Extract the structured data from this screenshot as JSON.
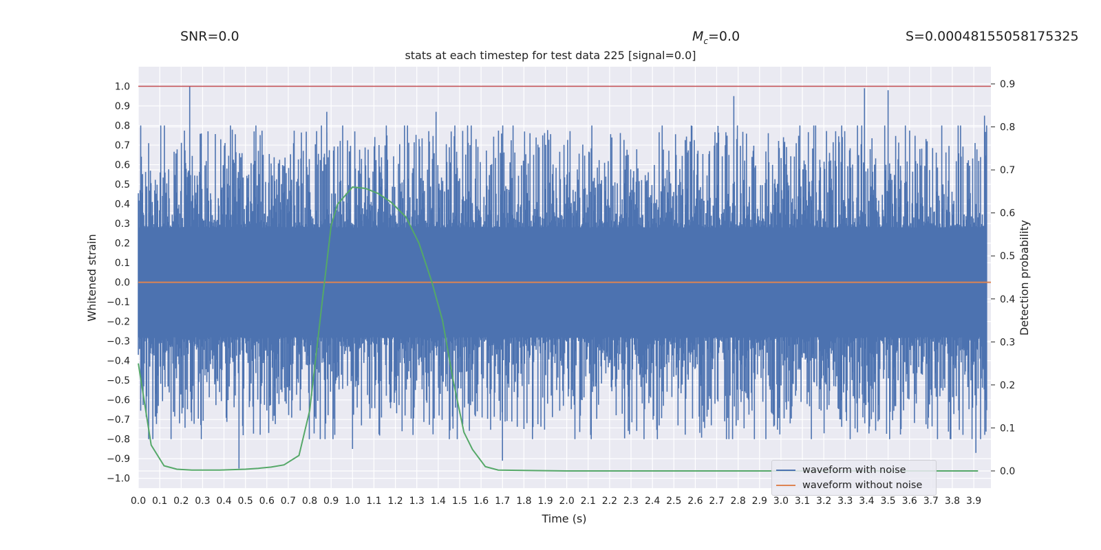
{
  "header": {
    "snr": "SNR=0.0",
    "mc_value": "=0.0",
    "s_value": "S=0.00048155058175325"
  },
  "chart_data": {
    "type": "line",
    "title": "stats at each timestep for test data 225 [signal=0.0]",
    "xlabel": "Time (s)",
    "ylabel": "Whitened strain",
    "ylabel_right": "Detection probability",
    "xlim": [
      0.0,
      3.98
    ],
    "ylim": [
      -1.05,
      1.1
    ],
    "ylim_right": [
      -0.04,
      0.94
    ],
    "x_ticks": [
      "0.0",
      "0.1",
      "0.2",
      "0.3",
      "0.4",
      "0.5",
      "0.6",
      "0.7",
      "0.8",
      "0.9",
      "1.0",
      "1.1",
      "1.2",
      "1.3",
      "1.4",
      "1.5",
      "1.6",
      "1.7",
      "1.8",
      "1.9",
      "2.0",
      "2.1",
      "2.2",
      "2.3",
      "2.4",
      "2.5",
      "2.6",
      "2.7",
      "2.8",
      "2.9",
      "3.0",
      "3.1",
      "3.2",
      "3.3",
      "3.4",
      "3.5",
      "3.6",
      "3.7",
      "3.8",
      "3.9"
    ],
    "y_ticks": [
      "1.0",
      "0.9",
      "0.8",
      "0.7",
      "0.6",
      "0.5",
      "0.4",
      "0.3",
      "0.2",
      "0.1",
      "0.0",
      "-0.1",
      "-0.2",
      "-0.3",
      "-0.4",
      "-0.5",
      "-0.6",
      "-0.7",
      "-0.8",
      "-0.9",
      "-1.0"
    ],
    "y_ticks_right": [
      "0.9",
      "0.8",
      "0.7",
      "0.6",
      "0.5",
      "0.4",
      "0.3",
      "0.2",
      "0.1",
      "0.0"
    ],
    "grid": true,
    "legend_position": "bottom-right",
    "series": [
      {
        "name": "waveform with noise",
        "color": "#4c72b0",
        "axis": "left",
        "peaks": [
          {
            "x": 0.24,
            "y": 1.0
          },
          {
            "x": 0.47,
            "y": -0.95
          },
          {
            "x": 0.88,
            "y": 0.87
          },
          {
            "x": 1.0,
            "y": -0.85
          },
          {
            "x": 1.39,
            "y": 0.87
          },
          {
            "x": 1.7,
            "y": -0.91
          },
          {
            "x": 2.78,
            "y": 0.95
          },
          {
            "x": 3.39,
            "y": 0.99
          },
          {
            "x": 3.5,
            "y": 0.98
          },
          {
            "x": 3.91,
            "y": -0.87
          },
          {
            "x": 3.95,
            "y": 0.85
          }
        ]
      },
      {
        "name": "waveform without noise",
        "color": "#dd8452",
        "axis": "left",
        "x": [
          0.0,
          3.98
        ],
        "y": [
          0.0,
          0.0
        ]
      },
      {
        "name": "",
        "color": "#55a868",
        "axis": "right",
        "x": [
          0.0,
          0.06,
          0.12,
          0.18,
          0.25,
          0.31,
          0.38,
          0.44,
          0.5,
          0.56,
          0.62,
          0.68,
          0.75,
          0.8,
          0.86,
          0.9,
          0.93,
          1.0,
          1.06,
          1.12,
          1.18,
          1.25,
          1.31,
          1.37,
          1.42,
          1.47,
          1.52,
          1.56,
          1.62,
          1.68,
          2.0,
          3.0,
          3.92
        ],
        "y": [
          0.25,
          0.06,
          0.012,
          0.004,
          0.002,
          0.002,
          0.002,
          0.003,
          0.004,
          0.006,
          0.009,
          0.014,
          0.036,
          0.14,
          0.4,
          0.57,
          0.62,
          0.66,
          0.657,
          0.645,
          0.625,
          0.59,
          0.53,
          0.44,
          0.35,
          0.21,
          0.09,
          0.05,
          0.01,
          0.002,
          0.0,
          0.0,
          0.0
        ]
      },
      {
        "name": "",
        "color": "#c44e52",
        "axis": "left",
        "x": [
          0.0,
          3.98
        ],
        "y": [
          1.0,
          1.0
        ]
      }
    ]
  }
}
